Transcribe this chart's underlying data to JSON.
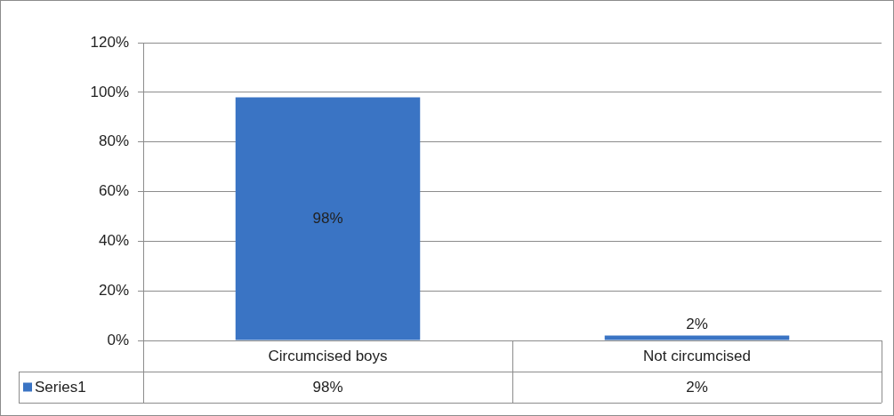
{
  "chart_data": {
    "type": "bar",
    "categories": [
      "Circumcised boys",
      "Not circumcised"
    ],
    "series": [
      {
        "name": "Series1",
        "color": "#3a74c4",
        "values": [
          98,
          2
        ],
        "value_labels": [
          "98%",
          "2%"
        ]
      }
    ],
    "ylim": [
      0,
      120
    ],
    "yticks": [
      {
        "value": 0,
        "label": "0%"
      },
      {
        "value": 20,
        "label": "20%"
      },
      {
        "value": 40,
        "label": "40%"
      },
      {
        "value": 60,
        "label": "60%"
      },
      {
        "value": 80,
        "label": "80%"
      },
      {
        "value": 100,
        "label": "100%"
      },
      {
        "value": 120,
        "label": "120%"
      }
    ],
    "grid": "y",
    "legend": "bottom",
    "data_labels": true
  }
}
